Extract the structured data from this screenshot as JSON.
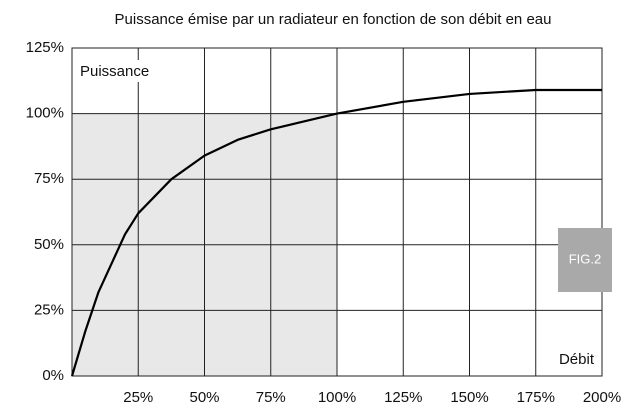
{
  "chart_data": {
    "type": "line",
    "title": "Puissance émise par un radiateur en fonction de son débit en eau",
    "y_label": "Puissance",
    "x_label": "Débit",
    "figure_label": "FIG.2",
    "x": [
      0,
      5,
      10,
      15,
      20,
      25,
      37.5,
      50,
      62.5,
      75,
      87.5,
      100,
      125,
      150,
      175,
      200
    ],
    "series": [
      {
        "name": "Puissance",
        "color": "#000000",
        "values": [
          0,
          17,
          32,
          43,
          54,
          62,
          75,
          84,
          90,
          94,
          97,
          100,
          104.5,
          107.5,
          109,
          109
        ]
      }
    ],
    "xlim": [
      0,
      200
    ],
    "ylim": [
      0,
      125
    ],
    "xticks": [
      {
        "value": 25,
        "label": "25%"
      },
      {
        "value": 50,
        "label": "50%"
      },
      {
        "value": 75,
        "label": "75%"
      },
      {
        "value": 100,
        "label": "100%"
      },
      {
        "value": 125,
        "label": "125%"
      },
      {
        "value": 150,
        "label": "150%"
      },
      {
        "value": 175,
        "label": "175%"
      },
      {
        "value": 200,
        "label": "200%"
      }
    ],
    "yticks": [
      {
        "value": 0,
        "label": "0%"
      },
      {
        "value": 25,
        "label": "25%"
      },
      {
        "value": 50,
        "label": "50%"
      },
      {
        "value": 75,
        "label": "75%"
      },
      {
        "value": 100,
        "label": "100%"
      },
      {
        "value": 125,
        "label": "125%"
      }
    ],
    "shaded_region": {
      "xlim": [
        0,
        100
      ],
      "ylim": [
        0,
        100
      ],
      "color": "#e8e8e8"
    },
    "grid": true
  }
}
